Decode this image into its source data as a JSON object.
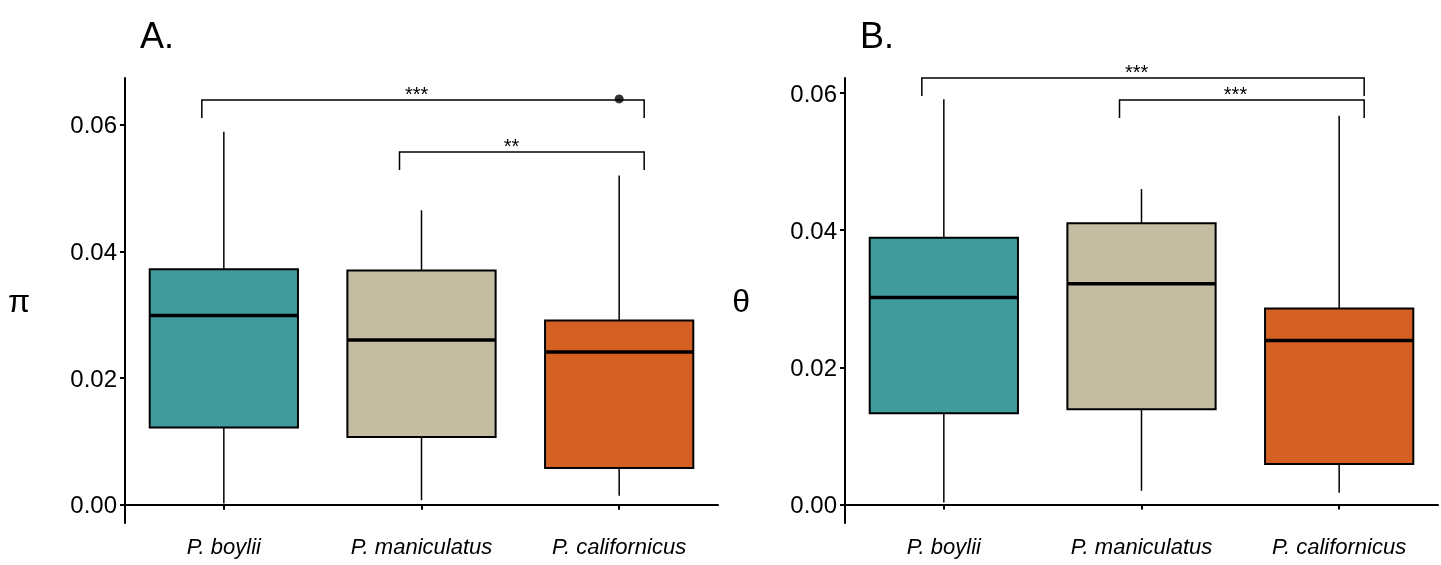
{
  "chart_data": [
    {
      "type": "box",
      "title": "A.",
      "ylabel": "π",
      "categories": [
        "P. boylii",
        "P. maniculatus",
        "P. californicus"
      ],
      "colors": [
        "#3f9b9c",
        "#c4bda2",
        "#d46023"
      ],
      "boxes": [
        {
          "low": 0.0002,
          "q1": 0.0122,
          "median": 0.0299,
          "q3": 0.0372,
          "high": 0.0589
        },
        {
          "low": 0.0007,
          "q1": 0.0107,
          "median": 0.026,
          "q3": 0.037,
          "high": 0.0465
        },
        {
          "low": 0.0014,
          "q1": 0.0058,
          "median": 0.0241,
          "q3": 0.0291,
          "high": 0.052,
          "outliers": [
            0.0641
          ]
        }
      ],
      "ylim": [
        -0.0029,
        0.0674
      ],
      "yticks": [
        {
          "value": 0,
          "label": "0.00"
        },
        {
          "value": 0.02,
          "label": "0.02"
        },
        {
          "value": 0.04,
          "label": "0.04"
        },
        {
          "value": 0.06,
          "label": "0.06"
        }
      ],
      "grid": false,
      "annotations": [
        "***",
        "**"
      ]
    },
    {
      "type": "box",
      "title": "B.",
      "ylabel": "θ",
      "categories": [
        "P. boylii",
        "P. maniculatus",
        "P. californicus"
      ],
      "colors": [
        "#3f9b9c",
        "#c4bda2",
        "#d46023"
      ],
      "boxes": [
        {
          "low": 0.0003,
          "q1": 0.0133,
          "median": 0.0302,
          "q3": 0.0389,
          "high": 0.0591
        },
        {
          "low": 0.002,
          "q1": 0.0139,
          "median": 0.0322,
          "q3": 0.041,
          "high": 0.046
        },
        {
          "low": 0.0017,
          "q1": 0.0059,
          "median": 0.0239,
          "q3": 0.0286,
          "high": 0.0567
        }
      ],
      "ylim": [
        -0.0027,
        0.0622
      ],
      "yticks": [
        {
          "value": 0,
          "label": "0.00"
        },
        {
          "value": 0.02,
          "label": "0.02"
        },
        {
          "value": 0.04,
          "label": "0.04"
        },
        {
          "value": 0.06,
          "label": "0.06"
        }
      ],
      "grid": false,
      "annotations": [
        "***",
        "***"
      ]
    }
  ]
}
